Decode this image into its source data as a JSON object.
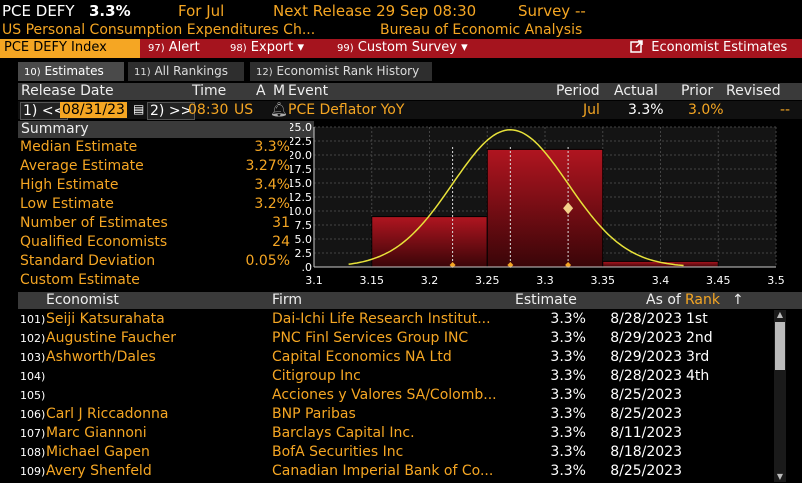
{
  "header": {
    "ticker": "PCE DEFY",
    "value": "3.3%",
    "for_label": "For Jul",
    "next_release": "Next Release 29 Sep 08:30",
    "survey": "Survey --",
    "full_name": "US Personal Consumption Expenditures Ch...",
    "source": "Bureau of Economic Analysis"
  },
  "menubar": {
    "ticker_index": "PCE DEFY Index",
    "alert_num": "97)",
    "alert": "Alert",
    "export_num": "98)",
    "export": "Export ▾",
    "custom_num": "99)",
    "custom": "Custom Survey ▾",
    "economist": "Economist Estimates"
  },
  "tabs": [
    {
      "num": "10)",
      "label": "Estimates"
    },
    {
      "num": "11)",
      "label": "All Rankings"
    },
    {
      "num": "12)",
      "label": "Economist Rank History"
    }
  ],
  "release": {
    "hdr_date": "Release Date",
    "hdr_time": "Time",
    "hdr_a": "A",
    "hdr_m": "M",
    "hdr_event": "Event",
    "hdr_period": "Period",
    "hdr_actual": "Actual",
    "hdr_prior": "Prior",
    "hdr_revised": "Revised",
    "btn1": "1) <<",
    "date": "08/31/23",
    "btn2": "2) >>",
    "time": "08:30",
    "country": "US",
    "event": "PCE Deflator YoY",
    "period": "Jul",
    "actual": "3.3%",
    "prior": "3.0%",
    "revised": "--"
  },
  "summary": {
    "title": "Summary",
    "rows": [
      {
        "k": "Median Estimate",
        "v": "3.3%"
      },
      {
        "k": "Average Estimate",
        "v": "3.27%"
      },
      {
        "k": "High Estimate",
        "v": "3.4%"
      },
      {
        "k": "Low Estimate",
        "v": "3.2%"
      },
      {
        "k": "Number of Estimates",
        "v": "31"
      },
      {
        "k": "Qualified Economists",
        "v": "24"
      },
      {
        "k": "Standard Deviation",
        "v": "0.05%"
      },
      {
        "k": "Custom Estimate",
        "v": ""
      }
    ]
  },
  "chart_data": {
    "type": "bar",
    "x_ticks": [
      "3.1",
      "3.15",
      "3.2",
      "3.25",
      "3.3",
      "3.35",
      "3.4",
      "3.45",
      "3.5"
    ],
    "y_ticks": [
      "25.0",
      "22.5",
      "20.0",
      "17.5",
      "15.0",
      "12.5",
      "10.0",
      "7.5",
      "5.0",
      "2.5",
      ".0"
    ],
    "xlim": [
      3.1,
      3.5
    ],
    "ylim": [
      0,
      25
    ],
    "bins": [
      {
        "from": 3.15,
        "to": 3.25,
        "value": 9
      },
      {
        "from": 3.25,
        "to": 3.35,
        "value": 21
      },
      {
        "from": 3.35,
        "to": 3.45,
        "value": 1
      }
    ],
    "curve": {
      "mean": 3.27,
      "sd": 0.05,
      "peak": 24.5
    },
    "markers": [
      3.22,
      3.27,
      3.32
    ],
    "highlight": {
      "x": 3.32,
      "y": 10.5
    },
    "colors": {
      "bar": "#b01520",
      "curve": "#e8e23a",
      "marker": "#f5a623"
    }
  },
  "table": {
    "hdr_economist": "Economist",
    "hdr_firm": "Firm",
    "hdr_estimate": "Estimate",
    "hdr_asof": "As of",
    "hdr_rank": "Rank",
    "sort_icon": "↑",
    "rows": [
      {
        "num": "101)",
        "econ": "Seiji Katsurahata",
        "firm": "Dai-Ichi Life Research Institut...",
        "est": "3.3%",
        "asof": "8/28/2023",
        "rank": "1st"
      },
      {
        "num": "102)",
        "econ": "Augustine Faucher",
        "firm": "PNC Finl Services Group INC",
        "est": "3.3%",
        "asof": "8/29/2023",
        "rank": "2nd"
      },
      {
        "num": "103)",
        "econ": "Ashworth/Dales",
        "firm": "Capital Economics NA Ltd",
        "est": "3.3%",
        "asof": "8/29/2023",
        "rank": "3rd"
      },
      {
        "num": "104)",
        "econ": "",
        "firm": "Citigroup Inc",
        "est": "3.3%",
        "asof": "8/28/2023",
        "rank": "4th"
      },
      {
        "num": "105)",
        "econ": "",
        "firm": "Acciones y Valores SA/Colomb...",
        "est": "3.3%",
        "asof": "8/25/2023",
        "rank": ""
      },
      {
        "num": "106)",
        "econ": "Carl J Riccadonna",
        "firm": "BNP Paribas",
        "est": "3.3%",
        "asof": "8/25/2023",
        "rank": ""
      },
      {
        "num": "107)",
        "econ": "Marc Giannoni",
        "firm": "Barclays Capital Inc.",
        "est": "3.3%",
        "asof": "8/11/2023",
        "rank": ""
      },
      {
        "num": "108)",
        "econ": "Michael Gapen",
        "firm": "BofA Securities Inc",
        "est": "3.3%",
        "asof": "8/18/2023",
        "rank": ""
      },
      {
        "num": "109)",
        "econ": "Avery Shenfeld",
        "firm": "Canadian Imperial Bank of Co...",
        "est": "3.3%",
        "asof": "8/25/2023",
        "rank": ""
      }
    ]
  }
}
